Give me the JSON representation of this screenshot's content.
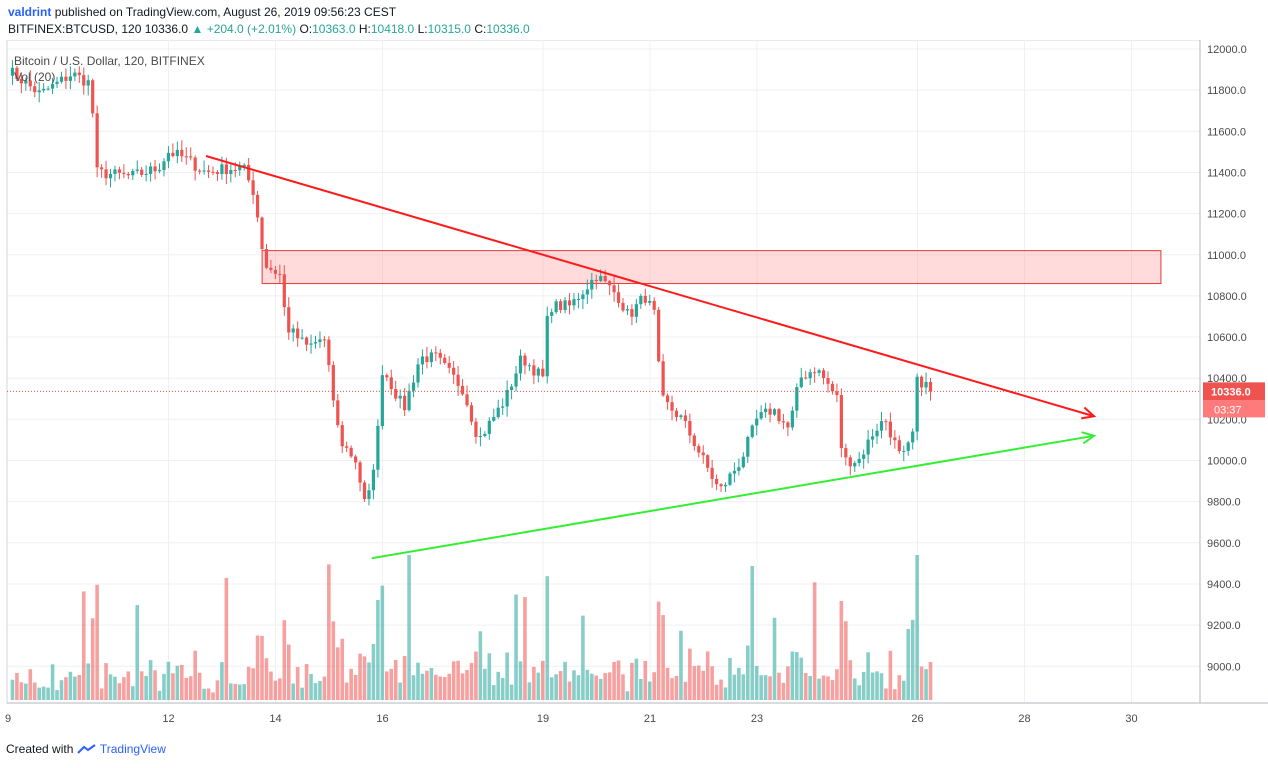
{
  "header": {
    "author": "valdrint",
    "published_text": "published on TradingView.com, August 26, 2019 09:56:23 CEST",
    "symbol": "BITFINEX:BTCUSD, 120",
    "last": "10336.0",
    "change": "+204.0 (+2.01%)",
    "o_label": "O:",
    "o": "10363.0",
    "h_label": "H:",
    "h": "10418.0",
    "l_label": "L:",
    "l": "10315.0",
    "c_label": "C:",
    "c": "10336.0"
  },
  "legend": {
    "title": "Bitcoin / U.S. Dollar, 120, BITFINEX",
    "volume": "Vol (20)"
  },
  "footer": {
    "created_with": "Created with",
    "brand": "TradingView"
  },
  "colors": {
    "up": "#26a69a",
    "down": "#ef5350",
    "resistance_line": "#ff1a1a",
    "support_line": "#33ee33",
    "zone": "#ff9999"
  },
  "chart_data": {
    "type": "candlestick",
    "symbol": "BITFINEX:BTCUSD",
    "interval": "120",
    "ylim": [
      8850,
      12050
    ],
    "yticks": [
      "12000.0",
      "11800.0",
      "11600.0",
      "11400.0",
      "11200.0",
      "11000.0",
      "10800.0",
      "10600.0",
      "10400.0",
      "10200.0",
      "10000.0",
      "9800.0",
      "9600.0",
      "9400.0",
      "9200.0",
      "9000.0"
    ],
    "xticks": [
      "9",
      "12",
      "14",
      "16",
      "19",
      "21",
      "23",
      "26",
      "28",
      "30"
    ],
    "last_price_label": "10336.0",
    "countdown_label": "03:37",
    "last_price": 10336,
    "anchors": [
      {
        "day": 9.0,
        "price": 11900
      },
      {
        "day": 9.6,
        "price": 11780
      },
      {
        "day": 10.2,
        "price": 11880
      },
      {
        "day": 10.55,
        "price": 11830
      },
      {
        "day": 10.65,
        "price": 11400
      },
      {
        "day": 11.3,
        "price": 11380
      },
      {
        "day": 11.8,
        "price": 11420
      },
      {
        "day": 12.0,
        "price": 11500
      },
      {
        "day": 12.3,
        "price": 11470
      },
      {
        "day": 12.7,
        "price": 11400
      },
      {
        "day": 13.1,
        "price": 11420
      },
      {
        "day": 13.4,
        "price": 11420
      },
      {
        "day": 13.6,
        "price": 11300
      },
      {
        "day": 13.8,
        "price": 10950
      },
      {
        "day": 14.1,
        "price": 10900
      },
      {
        "day": 14.2,
        "price": 10650
      },
      {
        "day": 14.6,
        "price": 10550
      },
      {
        "day": 14.9,
        "price": 10600
      },
      {
        "day": 15.2,
        "price": 10100
      },
      {
        "day": 15.5,
        "price": 10000
      },
      {
        "day": 15.7,
        "price": 9750
      },
      {
        "day": 15.9,
        "price": 10100
      },
      {
        "day": 16.0,
        "price": 10450
      },
      {
        "day": 16.4,
        "price": 10250
      },
      {
        "day": 16.7,
        "price": 10500
      },
      {
        "day": 17.0,
        "price": 10500
      },
      {
        "day": 17.5,
        "price": 10350
      },
      {
        "day": 17.8,
        "price": 10100
      },
      {
        "day": 18.3,
        "price": 10300
      },
      {
        "day": 18.6,
        "price": 10500
      },
      {
        "day": 19.0,
        "price": 10400
      },
      {
        "day": 19.1,
        "price": 10750
      },
      {
        "day": 19.5,
        "price": 10750
      },
      {
        "day": 20.0,
        "price": 10900
      },
      {
        "day": 20.4,
        "price": 10800
      },
      {
        "day": 20.6,
        "price": 10700
      },
      {
        "day": 20.9,
        "price": 10800
      },
      {
        "day": 21.1,
        "price": 10700
      },
      {
        "day": 21.2,
        "price": 10300
      },
      {
        "day": 21.6,
        "price": 10200
      },
      {
        "day": 21.9,
        "price": 10050
      },
      {
        "day": 22.3,
        "price": 9850
      },
      {
        "day": 22.7,
        "price": 10000
      },
      {
        "day": 23.0,
        "price": 10200
      },
      {
        "day": 23.3,
        "price": 10250
      },
      {
        "day": 23.6,
        "price": 10150
      },
      {
        "day": 23.8,
        "price": 10400
      },
      {
        "day": 24.1,
        "price": 10450
      },
      {
        "day": 24.3,
        "price": 10380
      },
      {
        "day": 24.5,
        "price": 10300
      },
      {
        "day": 24.6,
        "price": 10000
      },
      {
        "day": 24.9,
        "price": 10000
      },
      {
        "day": 25.2,
        "price": 10150
      },
      {
        "day": 25.4,
        "price": 10200
      },
      {
        "day": 25.7,
        "price": 10000
      },
      {
        "day": 25.9,
        "price": 10100
      },
      {
        "day": 26.0,
        "price": 10400
      },
      {
        "day": 26.3,
        "price": 10336
      }
    ],
    "resistance_zone": {
      "day_from": 13.75,
      "day_to": 30.55,
      "price_low": 10860,
      "price_high": 11020
    },
    "trendlines": [
      {
        "name": "resistance",
        "color": "#ff1a1a",
        "from": {
          "day": 12.7,
          "price": 11480
        },
        "to": {
          "day": 29.3,
          "price": 10215
        }
      },
      {
        "name": "support",
        "color": "#33ee33",
        "from": {
          "day": 15.8,
          "price": 9525
        },
        "to": {
          "day": 29.3,
          "price": 10120
        }
      }
    ]
  }
}
